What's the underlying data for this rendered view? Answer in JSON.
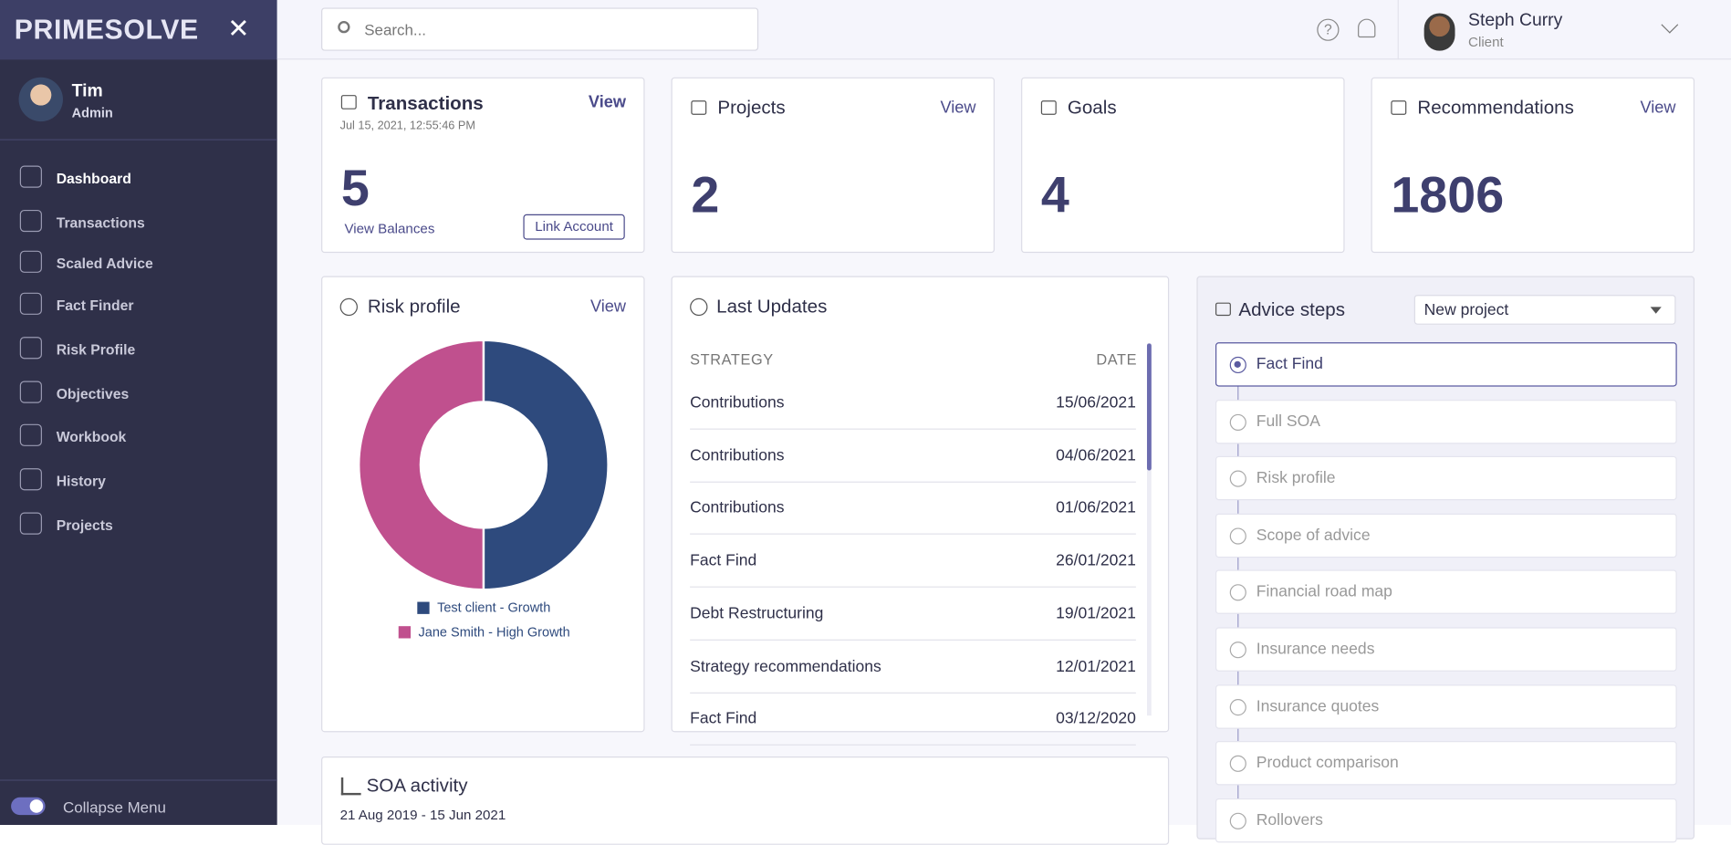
{
  "sidebar": {
    "logo": "PRIMESOLVE",
    "user": {
      "name": "Tim",
      "role": "Admin"
    },
    "menu": [
      "Dashboard",
      "Transactions",
      "Scaled Advice",
      "Fact Finder",
      "Risk Profile",
      "Objectives",
      "Workbook",
      "History",
      "Projects"
    ],
    "collapse": "Collapse Menu"
  },
  "topbar": {
    "search": "Search...",
    "user": {
      "name": "Steph Curry",
      "role": "Client"
    }
  },
  "cards": [
    {
      "title": "Transactions",
      "view": "View",
      "date": "Jul 15, 2021, 12:55:46 PM",
      "value": "5",
      "link": "View Balances",
      "button": "Link Account"
    },
    {
      "title": "Projects",
      "view": "View",
      "value": "2"
    },
    {
      "title": "Goals",
      "value": "4"
    },
    {
      "title": "Recommendations",
      "view": "View",
      "value": "1806"
    }
  ],
  "risk_profile": {
    "title": "Risk profile",
    "view": "View"
  },
  "chart_data": {
    "type": "pie",
    "donut": true,
    "categories": [
      "Test client - Growth",
      "Jane Smith - High Growth"
    ],
    "values": [
      50,
      50
    ],
    "colors": [
      "#2e4a7d",
      "#c0508e"
    ]
  },
  "last_updates": {
    "title": "Last Updates",
    "columns": [
      "STRATEGY",
      "DATE"
    ],
    "rows": [
      [
        "Contributions",
        "15/06/2021"
      ],
      [
        "Contributions",
        "04/06/2021"
      ],
      [
        "Contributions",
        "01/06/2021"
      ],
      [
        "Fact Find",
        "26/01/2021"
      ],
      [
        "Debt Restructuring",
        "19/01/2021"
      ],
      [
        "Strategy recommendations",
        "12/01/2021"
      ],
      [
        "Fact Find",
        "03/12/2020"
      ]
    ]
  },
  "advice_steps": {
    "title": "Advice steps",
    "select": "New project",
    "steps": [
      "Fact Find",
      "Full SOA",
      "Risk profile",
      "Scope of advice",
      "Financial road map",
      "Insurance needs",
      "Insurance quotes",
      "Product comparison",
      "Rollovers"
    ]
  },
  "soa_activity": {
    "title": "SOA activity",
    "range": "21 Aug 2019 - 15 Jun 2021"
  }
}
